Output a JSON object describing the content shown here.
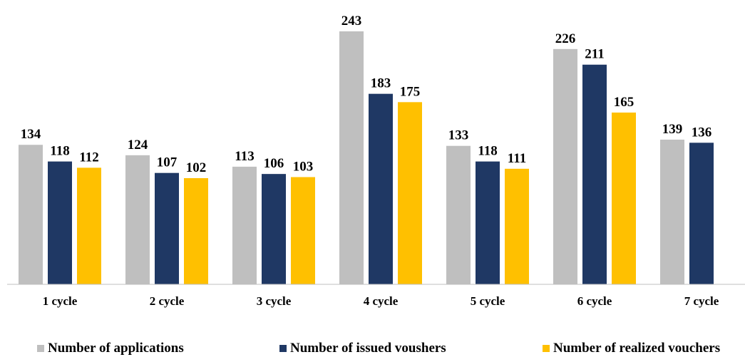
{
  "chart_data": {
    "type": "bar",
    "categories": [
      "1 cycle",
      "2 cycle",
      "3 cycle",
      "4 cycle",
      "5 cycle",
      "6 cycle",
      "7 cycle"
    ],
    "series": [
      {
        "name": "Number of applications",
        "color": "#bfbfbf",
        "values": [
          134,
          124,
          113,
          243,
          133,
          226,
          139
        ]
      },
      {
        "name": "Number of issued voushers",
        "color": "#1f3864",
        "values": [
          118,
          107,
          106,
          183,
          118,
          211,
          136
        ]
      },
      {
        "name": "Number of realized vouchers",
        "color": "#ffc000",
        "values": [
          112,
          102,
          103,
          175,
          111,
          165,
          null
        ]
      }
    ],
    "ylim": [
      0,
      243
    ],
    "data_labels": true,
    "grid": false,
    "legend_position": "bottom"
  }
}
